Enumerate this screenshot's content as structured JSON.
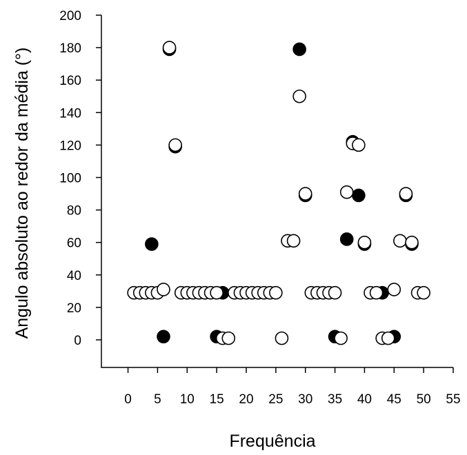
{
  "chart_data": {
    "type": "scatter",
    "title": "",
    "xlabel": "Frequência",
    "ylabel": "Angulo absoluto ao redor da média (°)",
    "xlim": [
      -4.5,
      55
    ],
    "ylim": [
      -17,
      200
    ],
    "x_ticks": [
      "0",
      "5",
      "10",
      "15",
      "20",
      "25",
      "30",
      "35",
      "40",
      "45",
      "50",
      "55"
    ],
    "y_ticks": [
      "0",
      "20",
      "40",
      "60",
      "80",
      "100",
      "120",
      "140",
      "160",
      "180",
      "200"
    ],
    "grid": false,
    "legend": "none",
    "series": [
      {
        "style": "filled",
        "color": "#000000",
        "points": [
          {
            "x": 4,
            "y": 59
          },
          {
            "x": 6,
            "y": 2
          },
          {
            "x": 7,
            "y": 179
          },
          {
            "x": 8,
            "y": 119
          },
          {
            "x": 15,
            "y": 2
          },
          {
            "x": 16,
            "y": 29
          },
          {
            "x": 29,
            "y": 179
          },
          {
            "x": 30,
            "y": 89
          },
          {
            "x": 35,
            "y": 2
          },
          {
            "x": 37,
            "y": 62
          },
          {
            "x": 38,
            "y": 122
          },
          {
            "x": 39,
            "y": 89
          },
          {
            "x": 40,
            "y": 59
          },
          {
            "x": 43,
            "y": 29
          },
          {
            "x": 45,
            "y": 2
          },
          {
            "x": 47,
            "y": 89
          },
          {
            "x": 48,
            "y": 59
          }
        ]
      },
      {
        "style": "open",
        "color": "#ffffff",
        "points": [
          {
            "x": 1,
            "y": 29
          },
          {
            "x": 2,
            "y": 29
          },
          {
            "x": 3,
            "y": 29
          },
          {
            "x": 4,
            "y": 29
          },
          {
            "x": 5,
            "y": 29
          },
          {
            "x": 6,
            "y": 31
          },
          {
            "x": 7,
            "y": 180
          },
          {
            "x": 8,
            "y": 120
          },
          {
            "x": 9,
            "y": 29
          },
          {
            "x": 10,
            "y": 29
          },
          {
            "x": 11,
            "y": 29
          },
          {
            "x": 12,
            "y": 29
          },
          {
            "x": 13,
            "y": 29
          },
          {
            "x": 14,
            "y": 29
          },
          {
            "x": 15,
            "y": 29
          },
          {
            "x": 16,
            "y": 1
          },
          {
            "x": 17,
            "y": 1
          },
          {
            "x": 18,
            "y": 29
          },
          {
            "x": 19,
            "y": 29
          },
          {
            "x": 20,
            "y": 29
          },
          {
            "x": 21,
            "y": 29
          },
          {
            "x": 22,
            "y": 29
          },
          {
            "x": 23,
            "y": 29
          },
          {
            "x": 24,
            "y": 29
          },
          {
            "x": 25,
            "y": 29
          },
          {
            "x": 26,
            "y": 1
          },
          {
            "x": 27,
            "y": 61
          },
          {
            "x": 28,
            "y": 61
          },
          {
            "x": 29,
            "y": 150
          },
          {
            "x": 30,
            "y": 90
          },
          {
            "x": 31,
            "y": 29
          },
          {
            "x": 32,
            "y": 29
          },
          {
            "x": 33,
            "y": 29
          },
          {
            "x": 34,
            "y": 29
          },
          {
            "x": 35,
            "y": 29
          },
          {
            "x": 36,
            "y": 1
          },
          {
            "x": 37,
            "y": 91
          },
          {
            "x": 38,
            "y": 121
          },
          {
            "x": 39,
            "y": 120
          },
          {
            "x": 40,
            "y": 60
          },
          {
            "x": 41,
            "y": 29
          },
          {
            "x": 42,
            "y": 29
          },
          {
            "x": 43,
            "y": 1
          },
          {
            "x": 44,
            "y": 1
          },
          {
            "x": 45,
            "y": 31
          },
          {
            "x": 46,
            "y": 61
          },
          {
            "x": 47,
            "y": 90
          },
          {
            "x": 48,
            "y": 60
          },
          {
            "x": 49,
            "y": 29
          },
          {
            "x": 50,
            "y": 29
          }
        ]
      }
    ]
  }
}
